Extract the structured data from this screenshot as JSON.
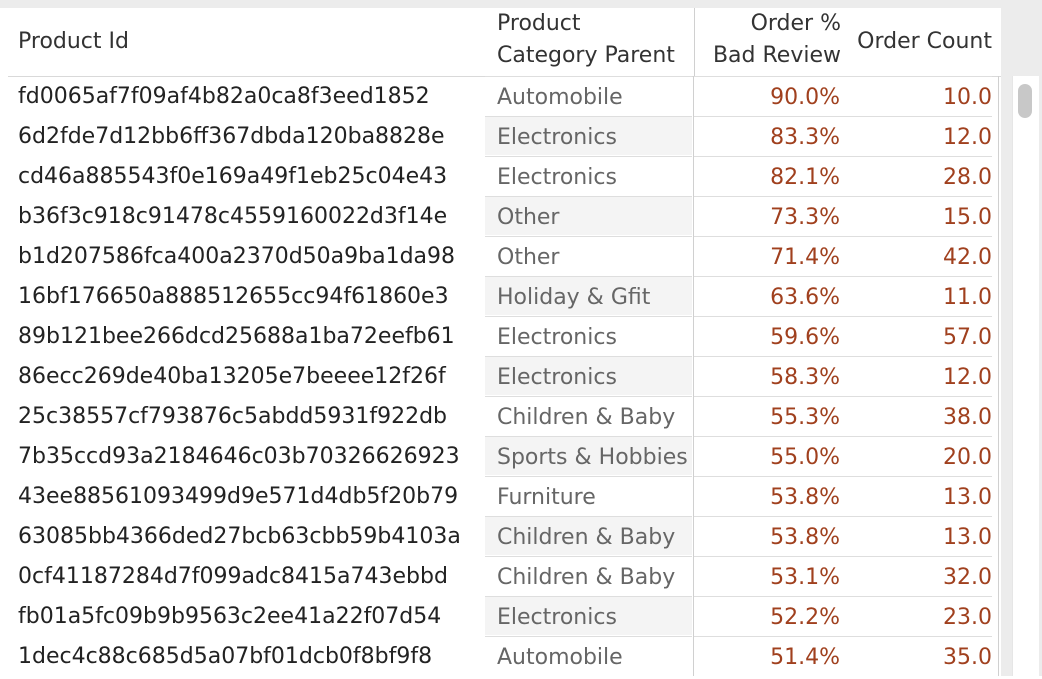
{
  "table": {
    "columns": {
      "product_id": "Product Id",
      "category_line1": "Product",
      "category_line2": "Category Parent",
      "pct_line1": "Order %",
      "pct_line2": "Bad Review",
      "count": "Order Count"
    },
    "rows": [
      {
        "product_id": "fd0065af7f09af4b82a0ca8f3eed1852",
        "category": "Automobile",
        "pct": "90.0%",
        "count": "10.0"
      },
      {
        "product_id": "6d2fde7d12bb6ff367dbda120ba8828e",
        "category": "Electronics",
        "pct": "83.3%",
        "count": "12.0"
      },
      {
        "product_id": "cd46a885543f0e169a49f1eb25c04e43",
        "category": "Electronics",
        "pct": "82.1%",
        "count": "28.0"
      },
      {
        "product_id": "b36f3c918c91478c4559160022d3f14e",
        "category": "Other",
        "pct": "73.3%",
        "count": "15.0"
      },
      {
        "product_id": "b1d207586fca400a2370d50a9ba1da98",
        "category": "Other",
        "pct": "71.4%",
        "count": "42.0"
      },
      {
        "product_id": "16bf176650a888512655cc94f61860e3",
        "category": "Holiday & Gfit",
        "pct": "63.6%",
        "count": "11.0"
      },
      {
        "product_id": "89b121bee266dcd25688a1ba72eefb61",
        "category": "Electronics",
        "pct": "59.6%",
        "count": "57.0"
      },
      {
        "product_id": "86ecc269de40ba13205e7beeee12f26f",
        "category": "Electronics",
        "pct": "58.3%",
        "count": "12.0"
      },
      {
        "product_id": "25c38557cf793876c5abdd5931f922db",
        "category": "Children & Baby",
        "pct": "55.3%",
        "count": "38.0"
      },
      {
        "product_id": "7b35ccd93a2184646c03b70326626923",
        "category": "Sports & Hobbies",
        "pct": "55.0%",
        "count": "20.0"
      },
      {
        "product_id": "43ee88561093499d9e571d4db5f20b79",
        "category": "Furniture",
        "pct": "53.8%",
        "count": "13.0"
      },
      {
        "product_id": "63085bb4366ded27bcb63cbb59b4103a",
        "category": "Children & Baby",
        "pct": "53.8%",
        "count": "13.0"
      },
      {
        "product_id": "0cf41187284d7f099adc8415a743ebbd",
        "category": "Children & Baby",
        "pct": "53.1%",
        "count": "32.0"
      },
      {
        "product_id": "fb01a5fc09b9b9563c2ee41a22f07d54",
        "category": "Electronics",
        "pct": "52.2%",
        "count": "23.0"
      },
      {
        "product_id": "1dec4c88c685d5a07bf01dcb0f8bf9f8",
        "category": "Automobile",
        "pct": "51.4%",
        "count": "35.0"
      }
    ]
  },
  "colors": {
    "measure_text": "#a0401e",
    "dimension_text": "#222222",
    "category_text": "#666666",
    "alt_band": "#f4f4f4"
  }
}
